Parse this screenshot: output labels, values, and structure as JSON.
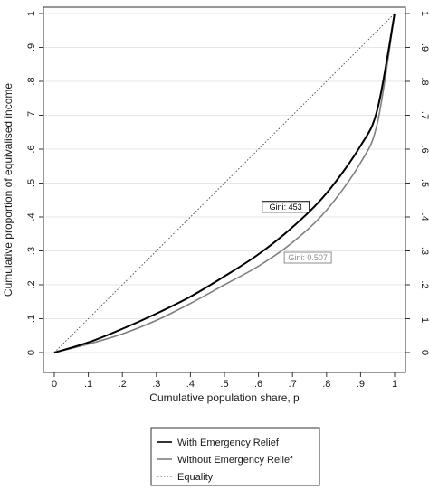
{
  "chart_data": {
    "type": "line",
    "title": "",
    "xlabel": "Cumulative population share, p",
    "ylabel": "Cumulative proportion of equivalised income",
    "xlim": [
      0,
      1
    ],
    "ylim": [
      0,
      1
    ],
    "x_ticks": [
      0,
      0.1,
      0.2,
      0.3,
      0.4,
      0.5,
      0.6,
      0.7,
      0.8,
      0.9,
      1
    ],
    "x_tick_labels": [
      "0",
      ".1",
      ".2",
      ".3",
      ".4",
      ".5",
      ".6",
      ".7",
      ".8",
      ".9",
      "1"
    ],
    "y_ticks": [
      0,
      0.1,
      0.2,
      0.3,
      0.4,
      0.5,
      0.6,
      0.7,
      0.8,
      0.9,
      1
    ],
    "y_tick_labels": [
      "0",
      ".1",
      ".2",
      ".3",
      ".4",
      ".5",
      ".6",
      ".7",
      ".8",
      ".9",
      "1"
    ],
    "grid": true,
    "right_axis_labels": true,
    "legend_position": "bottom",
    "series": [
      {
        "name": "With Emergency Relief",
        "color": "#000000",
        "style": "solid",
        "x": [
          0,
          0.1,
          0.2,
          0.3,
          0.4,
          0.5,
          0.6,
          0.7,
          0.8,
          0.9,
          0.95,
          1
        ],
        "y": [
          0,
          0.03,
          0.07,
          0.115,
          0.165,
          0.225,
          0.29,
          0.37,
          0.47,
          0.61,
          0.72,
          1
        ]
      },
      {
        "name": "Without Emergency Relief",
        "color": "#7f7f7f",
        "style": "solid",
        "x": [
          0,
          0.1,
          0.2,
          0.3,
          0.4,
          0.5,
          0.6,
          0.7,
          0.8,
          0.9,
          0.95,
          1
        ],
        "y": [
          0,
          0.025,
          0.055,
          0.095,
          0.145,
          0.2,
          0.255,
          0.325,
          0.42,
          0.56,
          0.68,
          1
        ]
      },
      {
        "name": "Equality",
        "color": "#555555",
        "style": "dotted",
        "x": [
          0,
          1
        ],
        "y": [
          0,
          1
        ]
      }
    ],
    "annotations": [
      {
        "text": "Gini:  453",
        "series": "With Emergency Relief",
        "at": [
          0.68,
          0.43
        ],
        "color": "#000000"
      },
      {
        "text": "Gini: 0.507",
        "series": "Without Emergency Relief",
        "at": [
          0.745,
          0.28
        ],
        "color": "#8c8c8c"
      }
    ]
  }
}
